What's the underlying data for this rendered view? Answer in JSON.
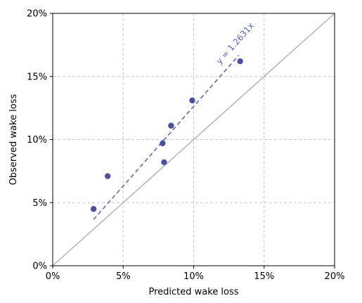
{
  "chart_data": {
    "type": "scatter",
    "title": "",
    "xlabel": "Predicted wake loss",
    "ylabel": "Observed wake loss",
    "xlim": [
      0,
      20
    ],
    "ylim": [
      0,
      20
    ],
    "x_ticks": [
      0,
      5,
      10,
      15,
      20
    ],
    "y_ticks": [
      0,
      5,
      10,
      15,
      20
    ],
    "x_tick_labels": [
      "0%",
      "5%",
      "10%",
      "15%",
      "20%"
    ],
    "y_tick_labels": [
      "0%",
      "5%",
      "10%",
      "15%",
      "20%"
    ],
    "grid": true,
    "series": [
      {
        "points": [
          {
            "x": 2.9,
            "y": 4.5
          },
          {
            "x": 3.9,
            "y": 7.1
          },
          {
            "x": 7.8,
            "y": 9.7
          },
          {
            "x": 7.9,
            "y": 8.2
          },
          {
            "x": 8.4,
            "y": 11.1
          },
          {
            "x": 9.9,
            "y": 13.1
          },
          {
            "x": 13.3,
            "y": 16.2
          }
        ]
      }
    ],
    "reference_line": {
      "slope": 1
    },
    "fit_line": {
      "slope": 1.2631,
      "x_range": [
        2.9,
        13.2
      ],
      "label": "y = 1.2631x"
    },
    "colors": {
      "points": "#4b4f9e",
      "fit_line": "#5c5fae",
      "reference_line": "#b3b3b3",
      "grid": "#c8c8c8"
    }
  }
}
